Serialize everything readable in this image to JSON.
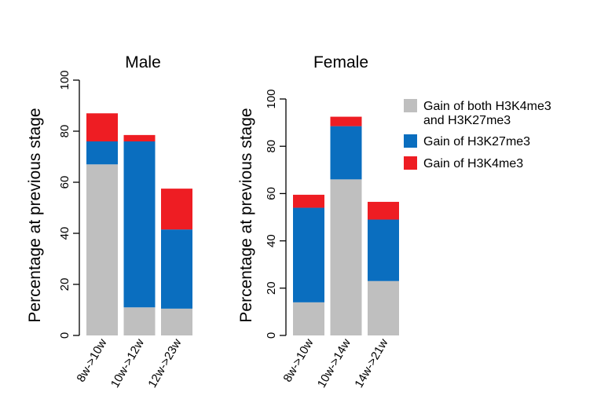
{
  "chart_data": [
    {
      "type": "bar",
      "stacked": true,
      "title": "Male",
      "ylabel": "Percentage at previous stage",
      "xlabel": "",
      "ylim": [
        0,
        100
      ],
      "yticks": [
        0,
        20,
        40,
        60,
        80,
        100
      ],
      "categories": [
        "8w->10w",
        "10w->12w",
        "12w->23w"
      ],
      "series": [
        {
          "name": "Gain of both H3K4me3 and H3K27me3",
          "color": "#bfbfbf",
          "values": [
            67,
            11,
            10.5
          ]
        },
        {
          "name": "Gain of H3K27me3",
          "color": "#0a6ebf",
          "values": [
            9,
            65,
            31
          ]
        },
        {
          "name": "Gain of H3K4me3",
          "color": "#ee1d23",
          "values": [
            11,
            2.5,
            16
          ]
        }
      ]
    },
    {
      "type": "bar",
      "stacked": true,
      "title": "Female",
      "ylabel": "Percentage at previous stage",
      "xlabel": "",
      "ylim": [
        0,
        100
      ],
      "yticks": [
        0,
        20,
        40,
        60,
        80,
        100
      ],
      "categories": [
        "8w->10w",
        "10w->14w",
        "14w->21w"
      ],
      "series": [
        {
          "name": "Gain of both H3K4me3 and H3K27me3",
          "color": "#bfbfbf",
          "values": [
            14,
            66,
            23
          ]
        },
        {
          "name": "Gain of H3K27me3",
          "color": "#0a6ebf",
          "values": [
            40,
            22.5,
            26
          ]
        },
        {
          "name": "Gain of H3K4me3",
          "color": "#ee1d23",
          "values": [
            5.5,
            4,
            7.5
          ]
        }
      ]
    }
  ],
  "legend": {
    "entries": [
      {
        "lines": [
          "Gain of both H3K4me3",
          "and H3K27me3"
        ],
        "color": "#bfbfbf"
      },
      {
        "lines": [
          "Gain of H3K27me3"
        ],
        "color": "#0a6ebf"
      },
      {
        "lines": [
          "Gain of H3K4me3"
        ],
        "color": "#ee1d23"
      }
    ]
  }
}
